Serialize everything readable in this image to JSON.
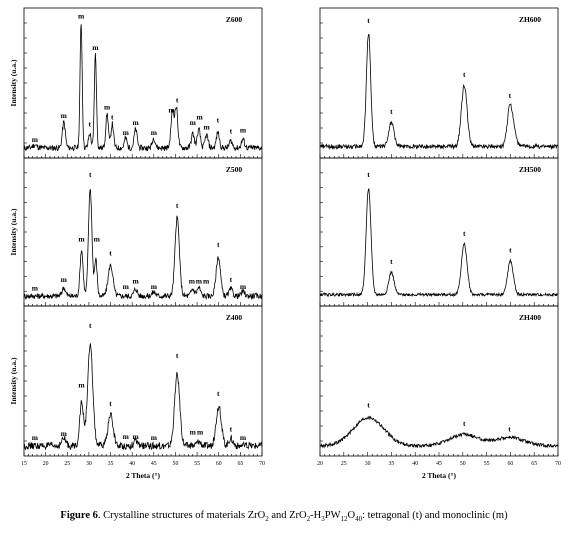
{
  "caption": {
    "label": "Figure 6",
    "text_a": ". Crystalline structures of materials ZrO",
    "text_b": " and ZrO",
    "text_c": "-H",
    "text_d": "PW",
    "text_e": "O",
    "text_f": ": tetragonal (t) and monoclinic (m)",
    "sub_2a": "2",
    "sub_2b": "2",
    "sub_3": "3",
    "sub_12": "12",
    "sub_40": "40"
  },
  "chart_data": [
    {
      "type": "line",
      "title": "Z600",
      "xlabel": "",
      "ylabel": "Intensity (u.a.)",
      "xlim": [
        15,
        70
      ],
      "x_ticks": [],
      "baseline": 0.05,
      "noise": 0.02,
      "peaks": [
        {
          "x": 17.5,
          "h": 0.02,
          "w": 0.5
        },
        {
          "x": 24.2,
          "h": 0.18,
          "w": 0.35
        },
        {
          "x": 28.2,
          "h": 0.88,
          "w": 0.25
        },
        {
          "x": 30.2,
          "h": 0.1,
          "w": 0.3
        },
        {
          "x": 31.5,
          "h": 0.66,
          "w": 0.25
        },
        {
          "x": 34.2,
          "h": 0.24,
          "w": 0.3
        },
        {
          "x": 35.4,
          "h": 0.17,
          "w": 0.3
        },
        {
          "x": 38.5,
          "h": 0.07,
          "w": 0.3
        },
        {
          "x": 40.8,
          "h": 0.13,
          "w": 0.35
        },
        {
          "x": 45.0,
          "h": 0.07,
          "w": 0.35
        },
        {
          "x": 49.3,
          "h": 0.25,
          "w": 0.35
        },
        {
          "x": 50.2,
          "h": 0.28,
          "w": 0.35
        },
        {
          "x": 54.0,
          "h": 0.1,
          "w": 0.35
        },
        {
          "x": 55.4,
          "h": 0.13,
          "w": 0.35
        },
        {
          "x": 57.2,
          "h": 0.09,
          "w": 0.35
        },
        {
          "x": 59.8,
          "h": 0.11,
          "w": 0.35
        },
        {
          "x": 62.8,
          "h": 0.05,
          "w": 0.35
        },
        {
          "x": 65.6,
          "h": 0.06,
          "w": 0.35
        }
      ],
      "annotations": [
        {
          "x": 17.5,
          "y": 0.09,
          "text": "m"
        },
        {
          "x": 24.2,
          "y": 0.26,
          "text": "m"
        },
        {
          "x": 28.2,
          "y": 0.96,
          "text": "m"
        },
        {
          "x": 30.2,
          "y": 0.2,
          "text": "t"
        },
        {
          "x": 31.5,
          "y": 0.74,
          "text": "m"
        },
        {
          "x": 34.2,
          "y": 0.32,
          "text": "m"
        },
        {
          "x": 35.4,
          "y": 0.25,
          "text": "t"
        },
        {
          "x": 38.5,
          "y": 0.14,
          "text": "m"
        },
        {
          "x": 40.8,
          "y": 0.21,
          "text": "m"
        },
        {
          "x": 45.0,
          "y": 0.14,
          "text": "m"
        },
        {
          "x": 49.1,
          "y": 0.3,
          "text": "m"
        },
        {
          "x": 50.4,
          "y": 0.37,
          "text": "t"
        },
        {
          "x": 54.0,
          "y": 0.21,
          "text": "m"
        },
        {
          "x": 55.6,
          "y": 0.25,
          "text": "m"
        },
        {
          "x": 57.2,
          "y": 0.18,
          "text": "m"
        },
        {
          "x": 59.8,
          "y": 0.23,
          "text": "t"
        },
        {
          "x": 62.8,
          "y": 0.15,
          "text": "t"
        },
        {
          "x": 65.6,
          "y": 0.16,
          "text": "m"
        }
      ]
    },
    {
      "type": "line",
      "title": "Z500",
      "xlabel": "",
      "ylabel": "Intensity (u.a.)",
      "xlim": [
        15,
        70
      ],
      "x_ticks": [],
      "baseline": 0.05,
      "noise": 0.02,
      "peaks": [
        {
          "x": 24.2,
          "h": 0.06,
          "w": 0.4
        },
        {
          "x": 28.3,
          "h": 0.33,
          "w": 0.35
        },
        {
          "x": 30.3,
          "h": 0.77,
          "w": 0.4
        },
        {
          "x": 31.6,
          "h": 0.26,
          "w": 0.3
        },
        {
          "x": 35.0,
          "h": 0.22,
          "w": 0.55
        },
        {
          "x": 40.8,
          "h": 0.05,
          "w": 0.4
        },
        {
          "x": 45.0,
          "h": 0.03,
          "w": 0.4
        },
        {
          "x": 50.4,
          "h": 0.56,
          "w": 0.5
        },
        {
          "x": 54.0,
          "h": 0.05,
          "w": 0.4
        },
        {
          "x": 55.4,
          "h": 0.06,
          "w": 0.4
        },
        {
          "x": 59.9,
          "h": 0.28,
          "w": 0.5
        },
        {
          "x": 62.8,
          "h": 0.05,
          "w": 0.4
        },
        {
          "x": 65.6,
          "h": 0.03,
          "w": 0.4
        }
      ],
      "annotations": [
        {
          "x": 17.5,
          "y": 0.09,
          "text": "m"
        },
        {
          "x": 24.2,
          "y": 0.15,
          "text": "m"
        },
        {
          "x": 28.3,
          "y": 0.44,
          "text": "m"
        },
        {
          "x": 30.3,
          "y": 0.9,
          "text": "t"
        },
        {
          "x": 31.8,
          "y": 0.44,
          "text": "m"
        },
        {
          "x": 35.0,
          "y": 0.34,
          "text": "t"
        },
        {
          "x": 38.5,
          "y": 0.1,
          "text": "m"
        },
        {
          "x": 40.8,
          "y": 0.14,
          "text": "m"
        },
        {
          "x": 45.0,
          "y": 0.1,
          "text": "m"
        },
        {
          "x": 50.4,
          "y": 0.68,
          "text": "t"
        },
        {
          "x": 53.8,
          "y": 0.14,
          "text": "m"
        },
        {
          "x": 55.4,
          "y": 0.14,
          "text": "m"
        },
        {
          "x": 57.1,
          "y": 0.14,
          "text": "m"
        },
        {
          "x": 59.9,
          "y": 0.4,
          "text": "t"
        },
        {
          "x": 62.8,
          "y": 0.15,
          "text": "t"
        },
        {
          "x": 65.6,
          "y": 0.1,
          "text": "m"
        }
      ]
    },
    {
      "type": "line",
      "title": "Z400",
      "xlabel": "2 Theta (°)",
      "ylabel": "Intensity (u.a.)",
      "xlim": [
        15,
        70
      ],
      "x_ticks": [
        15,
        20,
        25,
        30,
        35,
        40,
        45,
        50,
        55,
        60,
        65,
        70
      ],
      "baseline": 0.05,
      "noise": 0.025,
      "peaks": [
        {
          "x": 24.2,
          "h": 0.05,
          "w": 0.5
        },
        {
          "x": 28.3,
          "h": 0.3,
          "w": 0.45
        },
        {
          "x": 30.3,
          "h": 0.7,
          "w": 0.6
        },
        {
          "x": 35.0,
          "h": 0.22,
          "w": 0.6
        },
        {
          "x": 40.8,
          "h": 0.03,
          "w": 0.5
        },
        {
          "x": 50.4,
          "h": 0.5,
          "w": 0.6
        },
        {
          "x": 55.4,
          "h": 0.03,
          "w": 0.5
        },
        {
          "x": 60.0,
          "h": 0.28,
          "w": 0.6
        },
        {
          "x": 62.8,
          "h": 0.05,
          "w": 0.5
        }
      ],
      "annotations": [
        {
          "x": 17.5,
          "y": 0.09,
          "text": "m"
        },
        {
          "x": 24.2,
          "y": 0.12,
          "text": "m"
        },
        {
          "x": 28.3,
          "y": 0.46,
          "text": "m"
        },
        {
          "x": 30.3,
          "y": 0.88,
          "text": "t"
        },
        {
          "x": 35.0,
          "y": 0.33,
          "text": "t"
        },
        {
          "x": 38.5,
          "y": 0.1,
          "text": "m"
        },
        {
          "x": 40.8,
          "y": 0.1,
          "text": "m"
        },
        {
          "x": 45.0,
          "y": 0.09,
          "text": "m"
        },
        {
          "x": 50.4,
          "y": 0.67,
          "text": "t"
        },
        {
          "x": 54.0,
          "y": 0.13,
          "text": "m"
        },
        {
          "x": 55.7,
          "y": 0.13,
          "text": "m"
        },
        {
          "x": 59.9,
          "y": 0.4,
          "text": "t"
        },
        {
          "x": 62.8,
          "y": 0.15,
          "text": "t"
        },
        {
          "x": 65.6,
          "y": 0.09,
          "text": "m"
        }
      ]
    },
    {
      "type": "line",
      "title": "ZH600",
      "xlabel": "",
      "ylabel": "",
      "xlim": [
        20,
        70
      ],
      "x_ticks": [],
      "baseline": 0.06,
      "noise": 0.015,
      "peaks": [
        {
          "x": 30.2,
          "h": 0.8,
          "w": 0.45
        },
        {
          "x": 35.0,
          "h": 0.17,
          "w": 0.55
        },
        {
          "x": 50.3,
          "h": 0.43,
          "w": 0.6
        },
        {
          "x": 59.9,
          "h": 0.28,
          "w": 0.55
        },
        {
          "x": 60.8,
          "h": 0.08,
          "w": 0.5
        }
      ],
      "annotations": [
        {
          "x": 30.2,
          "y": 0.93,
          "text": "t"
        },
        {
          "x": 35.0,
          "y": 0.29,
          "text": "t"
        },
        {
          "x": 50.3,
          "y": 0.55,
          "text": "t"
        },
        {
          "x": 59.9,
          "y": 0.4,
          "text": "t"
        }
      ]
    },
    {
      "type": "line",
      "title": "ZH500",
      "xlabel": "",
      "ylabel": "",
      "xlim": [
        20,
        70
      ],
      "x_ticks": [],
      "baseline": 0.06,
      "noise": 0.01,
      "peaks": [
        {
          "x": 30.2,
          "h": 0.76,
          "w": 0.5
        },
        {
          "x": 35.0,
          "h": 0.16,
          "w": 0.55
        },
        {
          "x": 50.3,
          "h": 0.36,
          "w": 0.6
        },
        {
          "x": 60.0,
          "h": 0.24,
          "w": 0.6
        }
      ],
      "annotations": [
        {
          "x": 30.2,
          "y": 0.9,
          "text": "t"
        },
        {
          "x": 35.0,
          "y": 0.28,
          "text": "t"
        },
        {
          "x": 50.3,
          "y": 0.48,
          "text": "t"
        },
        {
          "x": 60.0,
          "y": 0.36,
          "text": "t"
        }
      ]
    },
    {
      "type": "line",
      "title": "ZH400",
      "xlabel": "2 Theta (°)",
      "ylabel": "",
      "xlim": [
        20,
        70
      ],
      "x_ticks": [
        20,
        25,
        30,
        35,
        40,
        45,
        50,
        55,
        60,
        65,
        70
      ],
      "baseline": 0.05,
      "noise": 0.012,
      "peaks": [
        {
          "x": 30.2,
          "h": 0.2,
          "w": 3.2
        },
        {
          "x": 50.3,
          "h": 0.08,
          "w": 3.0
        },
        {
          "x": 59.8,
          "h": 0.06,
          "w": 3.0
        }
      ],
      "annotations": [
        {
          "x": 30.2,
          "y": 0.32,
          "text": "t"
        },
        {
          "x": 50.3,
          "y": 0.19,
          "text": "t"
        },
        {
          "x": 59.8,
          "y": 0.15,
          "text": "t"
        }
      ]
    }
  ]
}
